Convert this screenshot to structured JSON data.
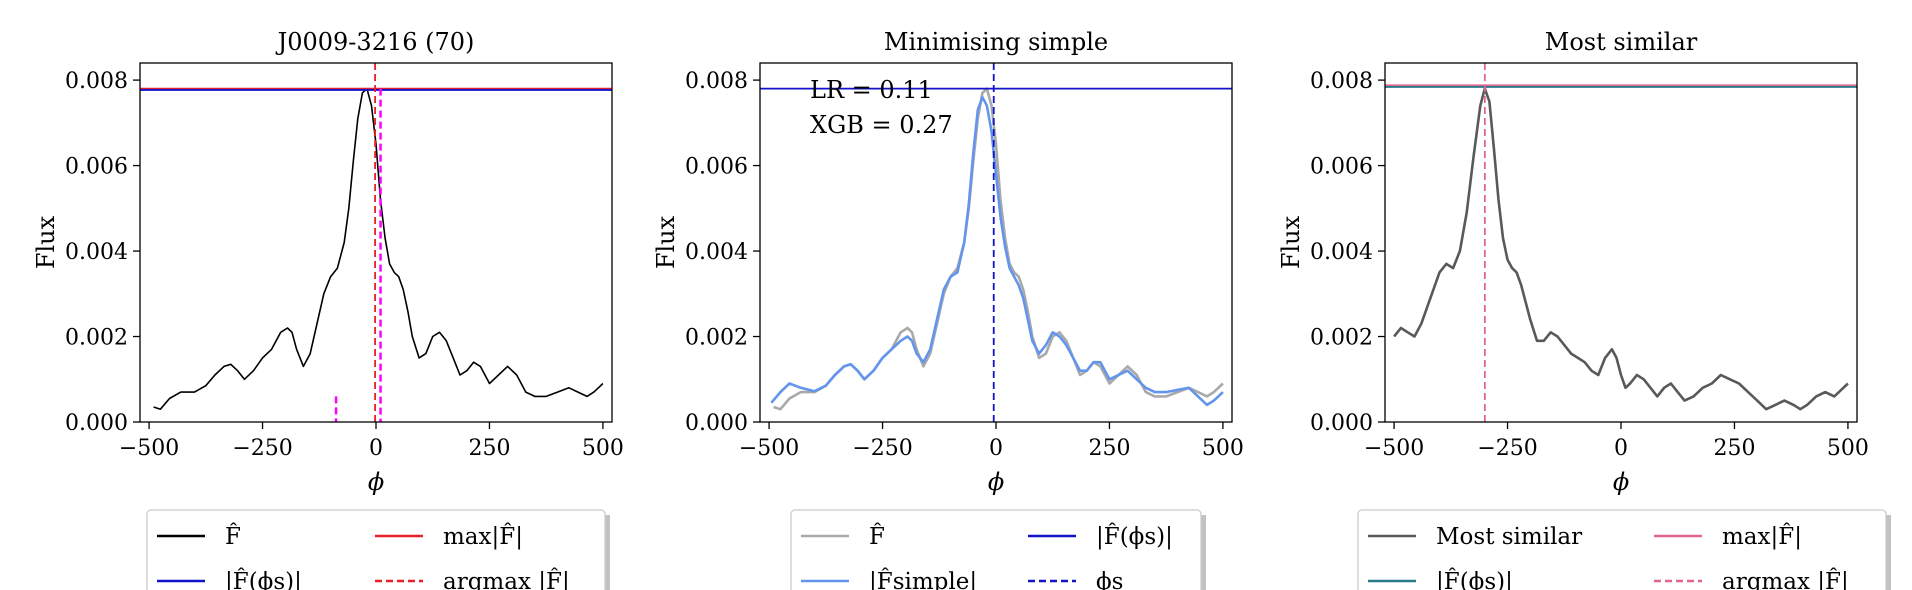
{
  "chart_data": [
    {
      "type": "line",
      "title": "J0009-3216 (70)",
      "xlabel": "ϕ",
      "ylabel": "Flux",
      "xlim": [
        -520,
        520
      ],
      "ylim": [
        0,
        0.0084
      ],
      "xticks": [
        -500,
        -250,
        0,
        250,
        500
      ],
      "xtick_labels": [
        "−500",
        "−250",
        "0",
        "250",
        "500"
      ],
      "yticks": [
        0,
        0.002,
        0.004,
        0.006,
        0.008
      ],
      "ytick_labels": [
        "0.000",
        "0.002",
        "0.004",
        "0.006",
        "0.008"
      ],
      "series": [
        {
          "name": "F̂",
          "color": "#000000",
          "x": [
            -490,
            -475,
            -455,
            -430,
            -400,
            -375,
            -355,
            -335,
            -320,
            -305,
            -290,
            -270,
            -250,
            -230,
            -210,
            -195,
            -185,
            -175,
            -160,
            -145,
            -130,
            -115,
            -100,
            -85,
            -70,
            -60,
            -50,
            -40,
            -30,
            -20,
            -10,
            0,
            10,
            20,
            30,
            40,
            50,
            60,
            70,
            80,
            95,
            110,
            125,
            140,
            155,
            170,
            185,
            200,
            215,
            230,
            250,
            270,
            290,
            310,
            330,
            350,
            375,
            400,
            425,
            445,
            465,
            480,
            490,
            500
          ],
          "y": [
            0.00035,
            0.0003,
            0.00055,
            0.0007,
            0.0007,
            0.00085,
            0.0011,
            0.0013,
            0.00135,
            0.0012,
            0.001,
            0.0012,
            0.0015,
            0.0017,
            0.0021,
            0.0022,
            0.0021,
            0.0017,
            0.0013,
            0.0016,
            0.0023,
            0.003,
            0.0034,
            0.0036,
            0.0042,
            0.005,
            0.0061,
            0.0071,
            0.0077,
            0.0078,
            0.0074,
            0.0065,
            0.0052,
            0.0043,
            0.0037,
            0.0035,
            0.0034,
            0.0031,
            0.0026,
            0.002,
            0.0015,
            0.0016,
            0.002,
            0.0021,
            0.0019,
            0.0015,
            0.0011,
            0.0012,
            0.0014,
            0.0013,
            0.0009,
            0.0011,
            0.0013,
            0.0011,
            0.0007,
            0.0006,
            0.0006,
            0.0007,
            0.0008,
            0.0007,
            0.0006,
            0.0007,
            0.0008,
            0.0009
          ]
        }
      ],
      "hlines": [
        {
          "name": "max|F̂|",
          "y": 0.0078,
          "color": "#e8202a",
          "style": "solid"
        },
        {
          "name": "|F̂(ϕs)|",
          "y": 0.00777,
          "color": "#1212c8",
          "style": "solid"
        }
      ],
      "vlines": [
        {
          "name": "argmax |F̂|",
          "x": -2,
          "color": "#e8202a",
          "style": "dashed",
          "ymax": 0.0084
        },
        {
          "name": "",
          "x": 10,
          "color": "#ff00ff",
          "style": "dashed",
          "ymax": 0.0078,
          "width": 2.5
        },
        {
          "name": "",
          "x": -88,
          "color": "#ff00ff",
          "style": "dashed",
          "ymax": 0.0006,
          "width": 2.5
        }
      ],
      "legend": {
        "placement": "below",
        "items": [
          {
            "label": "F̂",
            "color": "#000000",
            "style": "solid"
          },
          {
            "label": "max|F̂|",
            "color": "#e8202a",
            "style": "solid"
          },
          {
            "label": "|F̂(ϕs)|",
            "color": "#1212c8",
            "style": "solid"
          },
          {
            "label": "argmax |F̂|",
            "color": "#e8202a",
            "style": "dashed"
          }
        ]
      }
    },
    {
      "type": "line",
      "title": "Minimising simple",
      "xlabel": "ϕ",
      "ylabel": "Flux",
      "xlim": [
        -520,
        520
      ],
      "ylim": [
        0,
        0.0084
      ],
      "xticks": [
        -500,
        -250,
        0,
        250,
        500
      ],
      "xtick_labels": [
        "−500",
        "−250",
        "0",
        "250",
        "500"
      ],
      "yticks": [
        0,
        0.002,
        0.004,
        0.006,
        0.008
      ],
      "ytick_labels": [
        "0.000",
        "0.002",
        "0.004",
        "0.006",
        "0.008"
      ],
      "annotations": [
        "LR = 0.11",
        "XGB = 0.27"
      ],
      "series": [
        {
          "name": "F̂",
          "color": "#a9a9a9",
          "x": [
            -490,
            -475,
            -455,
            -430,
            -400,
            -375,
            -355,
            -335,
            -320,
            -305,
            -290,
            -270,
            -250,
            -230,
            -210,
            -195,
            -185,
            -175,
            -160,
            -145,
            -130,
            -115,
            -100,
            -85,
            -70,
            -60,
            -50,
            -40,
            -30,
            -20,
            -10,
            0,
            10,
            20,
            30,
            40,
            50,
            60,
            70,
            80,
            95,
            110,
            125,
            140,
            155,
            170,
            185,
            200,
            215,
            230,
            250,
            270,
            290,
            310,
            330,
            350,
            375,
            400,
            425,
            445,
            465,
            480,
            490,
            500
          ],
          "y": [
            0.00035,
            0.0003,
            0.00055,
            0.0007,
            0.0007,
            0.00085,
            0.0011,
            0.0013,
            0.00135,
            0.0012,
            0.001,
            0.0012,
            0.0015,
            0.0017,
            0.0021,
            0.0022,
            0.0021,
            0.0017,
            0.0013,
            0.0016,
            0.0023,
            0.003,
            0.0034,
            0.0036,
            0.0042,
            0.005,
            0.0061,
            0.0071,
            0.0077,
            0.0078,
            0.0074,
            0.0065,
            0.0052,
            0.0043,
            0.0037,
            0.0035,
            0.0034,
            0.0031,
            0.0026,
            0.002,
            0.0015,
            0.0016,
            0.002,
            0.0021,
            0.0019,
            0.0015,
            0.0011,
            0.0012,
            0.0014,
            0.0013,
            0.0009,
            0.0011,
            0.0013,
            0.0011,
            0.0007,
            0.0006,
            0.0006,
            0.0007,
            0.0008,
            0.0007,
            0.0006,
            0.0007,
            0.0008,
            0.0009
          ]
        },
        {
          "name": "|F̂simple|",
          "color": "#6495ed",
          "x": [
            -495,
            -475,
            -455,
            -430,
            -400,
            -375,
            -355,
            -335,
            -320,
            -305,
            -290,
            -270,
            -250,
            -230,
            -210,
            -195,
            -185,
            -175,
            -160,
            -145,
            -130,
            -115,
            -100,
            -85,
            -70,
            -60,
            -50,
            -40,
            -30,
            -20,
            -10,
            0,
            10,
            20,
            30,
            40,
            50,
            60,
            70,
            80,
            95,
            110,
            125,
            140,
            155,
            170,
            185,
            200,
            215,
            230,
            250,
            270,
            290,
            310,
            330,
            350,
            375,
            400,
            425,
            445,
            465,
            480,
            490,
            500
          ],
          "y": [
            0.00045,
            0.0007,
            0.0009,
            0.0008,
            0.00072,
            0.00085,
            0.0011,
            0.0013,
            0.00135,
            0.0012,
            0.001,
            0.0012,
            0.0015,
            0.0017,
            0.0019,
            0.002,
            0.0019,
            0.0016,
            0.0014,
            0.0017,
            0.0024,
            0.0031,
            0.0034,
            0.0035,
            0.0042,
            0.0051,
            0.0063,
            0.0073,
            0.0076,
            0.0074,
            0.0068,
            0.0058,
            0.0048,
            0.0041,
            0.0036,
            0.0034,
            0.0032,
            0.0029,
            0.0024,
            0.0019,
            0.0016,
            0.0018,
            0.0021,
            0.002,
            0.0018,
            0.0015,
            0.0012,
            0.0012,
            0.0014,
            0.0014,
            0.001,
            0.0011,
            0.0012,
            0.001,
            0.0008,
            0.0007,
            0.0007,
            0.00075,
            0.0008,
            0.0006,
            0.0004,
            0.0005,
            0.0006,
            0.0007
          ]
        }
      ],
      "hlines": [
        {
          "name": "|F̂(ϕs)|",
          "y": 0.0078,
          "color": "#1212c8",
          "style": "solid"
        }
      ],
      "vlines": [
        {
          "name": "ϕs",
          "x": -5,
          "color": "#1212c8",
          "style": "dashed",
          "ymax": 0.0084
        }
      ],
      "legend": {
        "placement": "below",
        "items": [
          {
            "label": "F̂",
            "color": "#a9a9a9",
            "style": "solid"
          },
          {
            "label": "|F̂(ϕs)|",
            "color": "#1212c8",
            "style": "solid"
          },
          {
            "label": "|F̂simple|",
            "color": "#6495ed",
            "style": "solid"
          },
          {
            "label": "ϕs",
            "color": "#1212c8",
            "style": "dashed"
          }
        ]
      }
    },
    {
      "type": "line",
      "title": "Most similar",
      "xlabel": "ϕ",
      "ylabel": "Flux",
      "xlim": [
        -520,
        520
      ],
      "ylim": [
        0,
        0.0084
      ],
      "xticks": [
        -500,
        -250,
        0,
        250,
        500
      ],
      "xtick_labels": [
        "−500",
        "−250",
        "0",
        "250",
        "500"
      ],
      "yticks": [
        0,
        0.002,
        0.004,
        0.006,
        0.008
      ],
      "ytick_labels": [
        "0.000",
        "0.002",
        "0.004",
        "0.006",
        "0.008"
      ],
      "series": [
        {
          "name": "Most similar",
          "color": "#595959",
          "x": [
            -500,
            -485,
            -470,
            -455,
            -440,
            -420,
            -400,
            -385,
            -370,
            -355,
            -340,
            -325,
            -310,
            -300,
            -290,
            -280,
            -270,
            -260,
            -250,
            -240,
            -230,
            -220,
            -210,
            -200,
            -185,
            -170,
            -155,
            -140,
            -125,
            -110,
            -95,
            -80,
            -65,
            -50,
            -35,
            -20,
            -10,
            0,
            10,
            20,
            35,
            50,
            65,
            80,
            95,
            110,
            125,
            140,
            160,
            180,
            200,
            220,
            240,
            260,
            280,
            300,
            320,
            340,
            360,
            380,
            395,
            410,
            430,
            450,
            470,
            490,
            500
          ],
          "y": [
            0.002,
            0.0022,
            0.0021,
            0.002,
            0.0023,
            0.0029,
            0.0035,
            0.0037,
            0.0036,
            0.004,
            0.0049,
            0.0062,
            0.0074,
            0.0078,
            0.0075,
            0.0064,
            0.0052,
            0.0043,
            0.0038,
            0.0036,
            0.0035,
            0.0032,
            0.0028,
            0.0024,
            0.0019,
            0.0019,
            0.0021,
            0.002,
            0.0018,
            0.0016,
            0.0015,
            0.0014,
            0.0012,
            0.0011,
            0.0015,
            0.0017,
            0.0015,
            0.0011,
            0.0008,
            0.0009,
            0.0011,
            0.001,
            0.0008,
            0.0006,
            0.0008,
            0.0009,
            0.0007,
            0.0005,
            0.0006,
            0.0008,
            0.0009,
            0.0011,
            0.001,
            0.0009,
            0.0007,
            0.0005,
            0.0003,
            0.0004,
            0.0005,
            0.0004,
            0.0003,
            0.0004,
            0.0006,
            0.0007,
            0.0006,
            0.0008,
            0.0009
          ]
        }
      ],
      "hlines": [
        {
          "name": "max|F̂|",
          "y": 0.00788,
          "color": "#e0668e",
          "style": "solid"
        },
        {
          "name": "|F̂(ϕs)|",
          "y": 0.00784,
          "color": "#2a7c8c",
          "style": "solid"
        }
      ],
      "vlines": [
        {
          "name": "argmax |F̂|",
          "x": -300,
          "color": "#e0668e",
          "style": "dashed",
          "ymax": 0.0084
        }
      ],
      "legend": {
        "placement": "below",
        "items": [
          {
            "label": "Most similar",
            "color": "#595959",
            "style": "solid"
          },
          {
            "label": "max|F̂|",
            "color": "#e0668e",
            "style": "solid"
          },
          {
            "label": "|F̂(ϕs)|",
            "color": "#2a7c8c",
            "style": "solid"
          },
          {
            "label": "argmax |F̂|",
            "color": "#e0668e",
            "style": "dashed"
          }
        ]
      }
    }
  ]
}
